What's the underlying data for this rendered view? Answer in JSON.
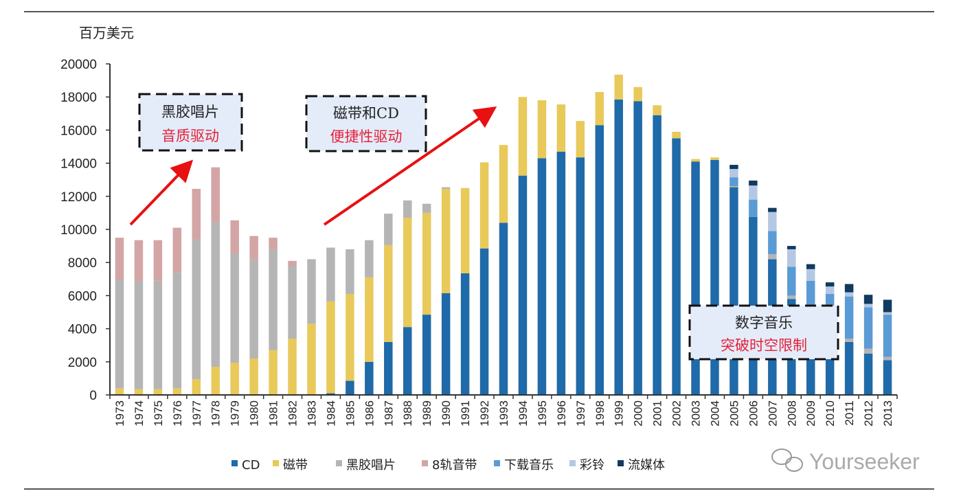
{
  "chart_data": {
    "type": "bar",
    "stacked": true,
    "title": "",
    "ylabel": "百万美元",
    "xlabel": "",
    "ylim": [
      0,
      20000
    ],
    "yticks": [
      0,
      2000,
      4000,
      6000,
      8000,
      10000,
      12000,
      14000,
      16000,
      18000,
      20000
    ],
    "grid": false,
    "legend_position": "bottom",
    "categories": [
      "1973",
      "1974",
      "1975",
      "1976",
      "1977",
      "1978",
      "1979",
      "1980",
      "1981",
      "1982",
      "1983",
      "1984",
      "1985",
      "1986",
      "1987",
      "1988",
      "1989",
      "1990",
      "1991",
      "1992",
      "1993",
      "1994",
      "1995",
      "1996",
      "1997",
      "1998",
      "1999",
      "2000",
      "2001",
      "2002",
      "2003",
      "2004",
      "2005",
      "2006",
      "2007",
      "2008",
      "2009",
      "2010",
      "2011",
      "2012",
      "2013"
    ],
    "series": [
      {
        "name": "CD",
        "color": "#1f6aa8",
        "values": [
          0,
          0,
          0,
          0,
          0,
          0,
          0,
          0,
          0,
          0,
          0,
          100,
          850,
          2000,
          3200,
          4100,
          4850,
          6150,
          7350,
          8850,
          10400,
          13250,
          14300,
          14700,
          14350,
          16300,
          17850,
          17750,
          16900,
          15500,
          14100,
          14200,
          12550,
          10750,
          8200,
          5800,
          4100,
          3400,
          3200,
          2500,
          2100
        ]
      },
      {
        "name": "磁带",
        "color": "#e8c95a",
        "values": [
          400,
          350,
          350,
          400,
          950,
          1700,
          1950,
          2200,
          2700,
          3400,
          4300,
          5550,
          5250,
          5100,
          5850,
          6600,
          6150,
          6300,
          5150,
          5200,
          4700,
          4750,
          3500,
          2850,
          2200,
          2000,
          1500,
          850,
          600,
          400,
          150,
          150,
          50,
          0,
          0,
          0,
          0,
          0,
          0,
          0,
          0
        ]
      },
      {
        "name": "黑胶唱片",
        "color": "#b5b5b5",
        "values": [
          6550,
          6500,
          6550,
          7000,
          8450,
          8750,
          6600,
          6000,
          6100,
          4400,
          3900,
          3250,
          2700,
          2250,
          1900,
          1050,
          550,
          100,
          0,
          0,
          0,
          0,
          0,
          0,
          0,
          0,
          0,
          0,
          0,
          0,
          0,
          0,
          0,
          0,
          300,
          200,
          100,
          100,
          200,
          300,
          200
        ]
      },
      {
        "name": "8轨音带",
        "color": "#d4a5a5",
        "values": [
          2550,
          2500,
          2450,
          2700,
          3050,
          3300,
          2000,
          1400,
          700,
          300,
          0,
          0,
          0,
          0,
          0,
          0,
          0,
          0,
          0,
          0,
          0,
          0,
          0,
          0,
          0,
          0,
          0,
          0,
          0,
          0,
          0,
          0,
          0,
          0,
          0,
          0,
          0,
          0,
          0,
          0,
          0
        ]
      },
      {
        "name": "下载音乐",
        "color": "#5b9bd5",
        "values": [
          0,
          0,
          0,
          0,
          0,
          0,
          0,
          0,
          0,
          0,
          0,
          0,
          0,
          0,
          0,
          0,
          0,
          0,
          0,
          0,
          0,
          0,
          0,
          0,
          0,
          0,
          0,
          0,
          0,
          0,
          0,
          0,
          550,
          1050,
          1400,
          1750,
          2700,
          2600,
          2550,
          2500,
          2550
        ]
      },
      {
        "name": "彩铃",
        "color": "#b4c8e4",
        "values": [
          0,
          0,
          0,
          0,
          0,
          0,
          0,
          0,
          0,
          0,
          0,
          0,
          0,
          0,
          0,
          0,
          0,
          0,
          0,
          0,
          0,
          0,
          0,
          0,
          0,
          0,
          0,
          0,
          0,
          0,
          0,
          0,
          500,
          850,
          1150,
          1050,
          700,
          450,
          250,
          200,
          150
        ]
      },
      {
        "name": "流媒体",
        "color": "#123a5e",
        "values": [
          0,
          0,
          0,
          0,
          0,
          0,
          0,
          0,
          0,
          0,
          0,
          0,
          0,
          0,
          0,
          0,
          0,
          0,
          0,
          0,
          0,
          0,
          0,
          0,
          0,
          0,
          0,
          0,
          0,
          0,
          0,
          0,
          250,
          300,
          250,
          200,
          300,
          250,
          500,
          550,
          750
        ]
      }
    ],
    "annotations": [
      {
        "line1": "黑胶唱片",
        "line2": "音质驱动"
      },
      {
        "line1": "磁带和CD",
        "line2": "便捷性驱动"
      },
      {
        "line1": "数字音乐",
        "line2": "突破时空限制"
      }
    ],
    "annotation_colors": {
      "line1": "#222222",
      "line2": "#e8203a",
      "box_fill": "#e3ecf8",
      "arrow": "#e81010"
    }
  },
  "watermark": "Yourseeker"
}
